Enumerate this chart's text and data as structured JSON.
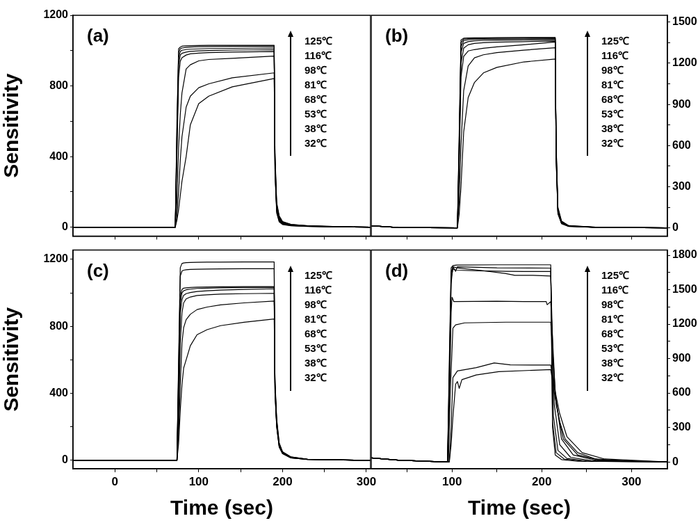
{
  "chart_data": [
    {
      "type": "line",
      "annotations": [
        "(a)",
        "125℃",
        "116℃",
        "98℃",
        "81℃",
        "68℃",
        "53℃",
        "38℃",
        "32℃"
      ],
      "ylabel": "Sensitivity",
      "marker": "none",
      "line_style": "solid",
      "grid": false,
      "tick_labels": "y",
      "xlim": [
        -50,
        305
      ],
      "xticks": [
        0,
        {
          "value": 50,
          "label": null
        },
        100,
        {
          "value": 150,
          "label": null
        },
        200,
        {
          "value": 250,
          "label": null
        },
        300
      ],
      "ylim": [
        -50,
        1200
      ],
      "yticks": [
        0,
        {
          "value": 200,
          "label": null
        },
        400,
        {
          "value": 600,
          "label": null
        },
        800,
        {
          "value": 1000,
          "label": null
        },
        1200
      ],
      "x": [
        -50,
        72,
        74,
        76,
        78,
        80,
        85,
        90,
        100,
        112,
        140,
        190,
        191,
        193,
        196,
        200,
        210,
        230,
        260,
        305
      ],
      "series": [
        {
          "color": "#000000",
          "values": [
            0,
            0,
            600,
            1010,
            1020,
            1025,
            1027,
            1028,
            1029,
            1030,
            1030,
            1030,
            300,
            80,
            30,
            15,
            8,
            4,
            2,
            0
          ]
        },
        {
          "color": "#000000",
          "values": [
            0,
            0,
            550,
            990,
            1010,
            1015,
            1018,
            1020,
            1022,
            1023,
            1024,
            1025,
            320,
            90,
            35,
            18,
            9,
            5,
            2,
            0
          ]
        },
        {
          "color": "#000000",
          "values": [
            0,
            0,
            500,
            960,
            995,
            1002,
            1006,
            1008,
            1010,
            1012,
            1013,
            1015,
            330,
            95,
            40,
            20,
            10,
            5,
            2,
            0
          ]
        },
        {
          "color": "#000000",
          "values": [
            0,
            0,
            450,
            920,
            975,
            985,
            992,
            996,
            999,
            1001,
            1003,
            1005,
            350,
            100,
            45,
            22,
            11,
            6,
            3,
            0
          ]
        },
        {
          "color": "#000000",
          "values": [
            0,
            0,
            400,
            850,
            940,
            960,
            975,
            982,
            986,
            989,
            992,
            995,
            360,
            110,
            50,
            25,
            12,
            6,
            3,
            0
          ]
        },
        {
          "color": "#000000",
          "values": [
            0,
            0,
            150,
            450,
            639,
            760,
            896,
            920,
            942,
            950,
            956,
            969,
            380,
            120,
            55,
            28,
            14,
            7,
            3,
            0
          ]
        },
        {
          "color": "#000000",
          "values": [
            0,
            0,
            60,
            200,
            380,
            512,
            680,
            742,
            790,
            812,
            846,
            874,
            400,
            130,
            60,
            30,
            15,
            8,
            4,
            0
          ]
        },
        {
          "color": "#000000",
          "values": [
            0,
            0,
            40,
            100,
            180,
            260,
            400,
            580,
            700,
            742,
            795,
            842,
            420,
            140,
            65,
            32,
            16,
            8,
            4,
            0
          ]
        }
      ]
    },
    {
      "type": "line",
      "annotations": [
        "(b)",
        "125℃",
        "116℃",
        "98℃",
        "81℃",
        "68℃",
        "53℃",
        "38℃",
        "32℃"
      ],
      "marker": "none",
      "line_style": "solid",
      "grid": false,
      "tick_labels": "y",
      "xlim": [
        10,
        340
      ],
      "xticks": [
        {
          "value": 50,
          "label": null
        },
        100,
        {
          "value": 150,
          "label": null
        },
        200,
        {
          "value": 250,
          "label": null
        },
        300
      ],
      "ylim": [
        -60,
        1550
      ],
      "yticks": [
        0,
        {
          "value": 150,
          "label": null
        },
        300,
        {
          "value": 450,
          "label": null
        },
        600,
        {
          "value": 750,
          "label": null
        },
        900,
        {
          "value": 1050,
          "label": null
        },
        1200,
        {
          "value": 1350,
          "label": null
        },
        1500
      ],
      "x": [
        10,
        40,
        106,
        108,
        110,
        113,
        118,
        125,
        135,
        150,
        180,
        215,
        216,
        218,
        222,
        230,
        260,
        339
      ],
      "series": [
        {
          "color": "#000000",
          "values": [
            15,
            2,
            0,
            700,
            1370,
            1383,
            1385,
            1386,
            1386,
            1387,
            1388,
            1388,
            500,
            100,
            30,
            10,
            3,
            0
          ]
        },
        {
          "color": "#000000",
          "values": [
            15,
            2,
            0,
            650,
            1350,
            1376,
            1380,
            1381,
            1382,
            1383,
            1384,
            1385,
            500,
            110,
            32,
            11,
            3,
            0
          ]
        },
        {
          "color": "#000000",
          "values": [
            15,
            2,
            0,
            600,
            1320,
            1365,
            1372,
            1375,
            1376,
            1377,
            1378,
            1380,
            520,
            115,
            35,
            12,
            4,
            0
          ]
        },
        {
          "color": "#000000",
          "values": [
            15,
            2,
            0,
            550,
            1280,
            1345,
            1358,
            1364,
            1366,
            1368,
            1370,
            1372,
            540,
            120,
            38,
            12,
            4,
            0
          ]
        },
        {
          "color": "#000000",
          "values": [
            15,
            2,
            0,
            500,
            1200,
            1310,
            1335,
            1345,
            1350,
            1354,
            1358,
            1362,
            560,
            125,
            40,
            13,
            4,
            0
          ]
        },
        {
          "color": "#000000",
          "values": [
            15,
            2,
            0,
            450,
            1100,
            1250,
            1290,
            1300,
            1310,
            1320,
            1335,
            1355,
            580,
            130,
            42,
            14,
            4,
            0
          ]
        },
        {
          "color": "#000000",
          "values": [
            15,
            2,
            0,
            200,
            600,
            1000,
            1180,
            1240,
            1262,
            1278,
            1296,
            1313,
            600,
            140,
            45,
            15,
            5,
            0
          ]
        },
        {
          "color": "#000000",
          "values": [
            15,
            2,
            0,
            100,
            300,
            700,
            950,
            1060,
            1130,
            1170,
            1210,
            1231,
            620,
            150,
            50,
            16,
            5,
            0
          ]
        }
      ]
    },
    {
      "type": "line",
      "annotations": [
        "(c)",
        "125℃",
        "116℃",
        "98℃",
        "81℃",
        "68℃",
        "53℃",
        "38℃",
        "32℃"
      ],
      "xlabel": "Time (sec)",
      "ylabel": "Sensitivity",
      "marker": "none",
      "line_style": "solid",
      "grid": false,
      "xlim": [
        -50,
        305
      ],
      "xticks": [
        0,
        {
          "value": 50,
          "label": null
        },
        100,
        {
          "value": 150,
          "label": null
        },
        200,
        {
          "value": 250,
          "label": null
        },
        300
      ],
      "ylim": [
        -50,
        1255
      ],
      "yticks": [
        0,
        {
          "value": 200,
          "label": null
        },
        400,
        {
          "value": 600,
          "label": null
        },
        800,
        {
          "value": 1000,
          "label": null
        },
        1200
      ],
      "x": [
        -50,
        74,
        76,
        78,
        80,
        82,
        85,
        90,
        98,
        110,
        126,
        154,
        190,
        191,
        193,
        196,
        200,
        210,
        230,
        305
      ],
      "series": [
        {
          "color": "#000000",
          "values": [
            0,
            0,
            600,
            1150,
            1175,
            1178,
            1180,
            1181,
            1182,
            1183,
            1183,
            1184,
            1184,
            400,
            200,
            80,
            40,
            15,
            5,
            0
          ]
        },
        {
          "color": "#000000",
          "values": [
            0,
            0,
            550,
            1100,
            1130,
            1135,
            1138,
            1140,
            1141,
            1142,
            1143,
            1144,
            1144,
            400,
            200,
            80,
            40,
            15,
            5,
            0
          ]
        },
        {
          "color": "#000000",
          "values": [
            0,
            0,
            500,
            980,
            1020,
            1028,
            1030,
            1032,
            1034,
            1035,
            1036,
            1037,
            1037,
            420,
            210,
            85,
            42,
            16,
            5,
            0
          ]
        },
        {
          "color": "#000000",
          "values": [
            0,
            0,
            450,
            940,
            1000,
            1012,
            1018,
            1022,
            1026,
            1028,
            1030,
            1032,
            1033,
            430,
            215,
            88,
            44,
            17,
            6,
            0
          ]
        },
        {
          "color": "#000000",
          "values": [
            0,
            0,
            400,
            880,
            960,
            985,
            995,
            1002,
            1008,
            1012,
            1016,
            1020,
            1024,
            440,
            220,
            90,
            45,
            18,
            6,
            0
          ]
        },
        {
          "color": "#000000",
          "values": [
            0,
            0,
            250,
            700,
            880,
            940,
            964,
            975,
            984,
            988,
            992,
            995,
            997,
            450,
            230,
            95,
            48,
            19,
            6,
            0
          ]
        },
        {
          "color": "#000000",
          "values": [
            0,
            0,
            150,
            450,
            700,
            792,
            840,
            872,
            900,
            915,
            928,
            940,
            951,
            460,
            240,
            100,
            50,
            20,
            7,
            0
          ]
        },
        {
          "color": "#000000",
          "values": [
            0,
            0,
            100,
            300,
            450,
            550,
            600,
            684,
            750,
            780,
            804,
            824,
            844,
            480,
            250,
            105,
            52,
            21,
            7,
            0
          ]
        }
      ]
    },
    {
      "type": "line",
      "annotations": [
        "(d)",
        "125℃",
        "116℃",
        "98℃",
        "81℃",
        "68℃",
        "53℃",
        "38℃",
        "32℃"
      ],
      "xlabel": "Time (sec)",
      "marker": "none",
      "line_style": "solid",
      "grid": false,
      "xlim": [
        10,
        340
      ],
      "xticks": [
        {
          "value": 50,
          "label": null
        },
        100,
        {
          "value": 150,
          "label": null
        },
        200,
        {
          "value": 250,
          "label": null
        },
        300
      ],
      "ylim": [
        -60,
        1845
      ],
      "yticks": [
        0,
        {
          "value": 150,
          "label": null
        },
        300,
        {
          "value": 450,
          "label": null
        },
        600,
        {
          "value": 750,
          "label": null
        },
        900,
        {
          "value": 1050,
          "label": null
        },
        1200,
        {
          "value": 1350,
          "label": null
        },
        1500,
        {
          "value": 1650,
          "label": null
        },
        1800
      ],
      "series": [
        {
          "color": "#000000",
          "x": [
            10,
            40,
            90,
            95,
            97,
            99,
            101,
            105,
            150,
            210,
            212,
            215,
            222,
            240,
            339
          ],
          "values": [
            35,
            15,
            0,
            0,
            900,
            1690,
            1710,
            1715,
            1717,
            1717,
            300,
            60,
            20,
            5,
            0
          ]
        },
        {
          "color": "#000000",
          "x": [
            10,
            40,
            90,
            95,
            97,
            99,
            101,
            104,
            106,
            150,
            210,
            212,
            216,
            225,
            245,
            339
          ],
          "values": [
            35,
            15,
            0,
            0,
            800,
            1650,
            1700,
            1660,
            1700,
            1690,
            1688,
            350,
            80,
            25,
            6,
            0
          ]
        },
        {
          "color": "#000000",
          "x": [
            10,
            40,
            90,
            95,
            97,
            99,
            101,
            105,
            130,
            160,
            180,
            210,
            213,
            218,
            228,
            250,
            339
          ],
          "values": [
            35,
            15,
            0,
            0,
            700,
            1600,
            1680,
            1670,
            1665,
            1660,
            1658,
            1658,
            400,
            100,
            30,
            8,
            0
          ]
        },
        {
          "color": "#000000",
          "x": [
            10,
            40,
            90,
            95,
            97,
            99,
            101,
            105,
            130,
            160,
            170,
            190,
            210,
            214,
            220,
            232,
            255,
            339
          ],
          "values": [
            35,
            15,
            0,
            0,
            600,
            1550,
            1700,
            1690,
            1670,
            1640,
            1625,
            1625,
            1619,
            500,
            150,
            40,
            10,
            0
          ]
        },
        {
          "color": "#000000",
          "x": [
            10,
            40,
            90,
            95,
            97,
            99,
            100,
            102,
            150,
            180,
            205,
            206,
            210,
            215,
            222,
            235,
            260,
            339
          ],
          "values": [
            35,
            15,
            0,
            0,
            500,
            1300,
            1435,
            1396,
            1400,
            1396,
            1396,
            1369,
            1396,
            600,
            200,
            60,
            15,
            0
          ]
        },
        {
          "color": "#000000",
          "x": [
            10,
            40,
            90,
            96,
            98,
            101,
            104,
            114,
            160,
            210,
            216,
            224,
            240,
            265,
            339
          ],
          "values": [
            35,
            15,
            0,
            0,
            600,
            1165,
            1194,
            1211,
            1217,
            1217,
            500,
            200,
            60,
            15,
            0
          ]
        },
        {
          "color": "#000000",
          "x": [
            10,
            40,
            90,
            97,
            99,
            101,
            106,
            127,
            147,
            165,
            210,
            214,
            220,
            228,
            245,
            270,
            339
          ],
          "values": [
            35,
            15,
            0,
            0,
            300,
            734,
            792,
            821,
            862,
            845,
            843,
            650,
            420,
            220,
            80,
            25,
            0
          ]
        },
        {
          "color": "#000000",
          "x": [
            10,
            40,
            90,
            97,
            99,
            101,
            104,
            106,
            108,
            111,
            127,
            152,
            210,
            214,
            220,
            226,
            240,
            260,
            300,
            339
          ],
          "values": [
            35,
            15,
            0,
            0,
            150,
            390,
            676,
            700,
            640,
            716,
            757,
            786,
            804,
            600,
            350,
            200,
            80,
            25,
            5,
            0
          ]
        }
      ]
    }
  ]
}
